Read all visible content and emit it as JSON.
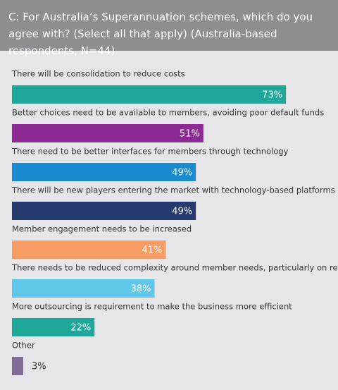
{
  "chart_data": {
    "type": "bar",
    "orientation": "horizontal",
    "title": "C: For Australia’s Superannuation schemes, which do you agree with? (Select all that apply) (Australia-based respondents, N=44)",
    "categories": [
      "There will be consolidation to reduce costs",
      "Better choices need to be available to members, avoiding poor default funds",
      "There need to be better interfaces for members through technology",
      "There will be new players entering the market with technology-based platforms",
      "Member engagement needs to be increased",
      "There needs to be reduced complexity around member needs, particularly on retirement",
      "More outsourcing is requirement to make the business more efficient",
      "Other"
    ],
    "values": [
      73,
      51,
      49,
      49,
      41,
      38,
      22,
      3
    ],
    "value_labels": [
      "73%",
      "51%",
      "49%",
      "49%",
      "41%",
      "38%",
      "22%",
      "3%"
    ],
    "colors": [
      "#1fa89a",
      "#8e2a93",
      "#1a8bd0",
      "#253a6e",
      "#f79c64",
      "#5fc8ea",
      "#1fa89a",
      "#7f6d95"
    ]
  }
}
